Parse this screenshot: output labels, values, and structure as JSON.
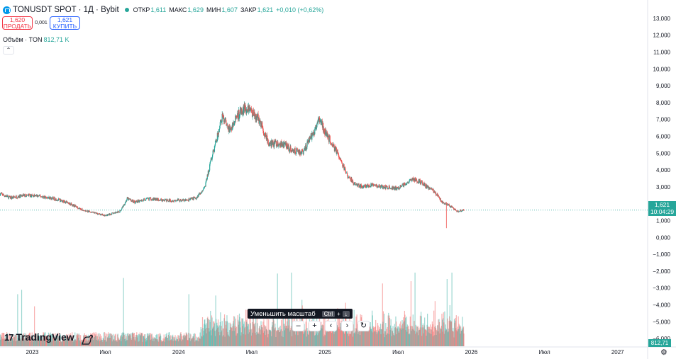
{
  "header": {
    "title": "TONUSDT SPOT · 1Д · Bybit",
    "ohlc": [
      {
        "label": "ОТКР",
        "value": "1,611"
      },
      {
        "label": "МАКС",
        "value": "1,629"
      },
      {
        "label": "МИН",
        "value": "1,607"
      },
      {
        "label": "ЗАКР",
        "value": "1,621"
      },
      {
        "label": "",
        "value": "+0,010 (+0,62%)"
      }
    ]
  },
  "trade": {
    "sell_price": "1,620",
    "sell_label": "ПРОДАТЬ",
    "spread": "0,001",
    "buy_price": "1,621",
    "buy_label": "КУПИТЬ"
  },
  "volume": {
    "label": "Объём · TON",
    "value": "812,71 K"
  },
  "collapse_icon": "chevron-up-icon",
  "tooltip": {
    "text": "Уменьшить масштаб",
    "key": "Ctrl",
    "plus": "+",
    "arrow": "↓"
  },
  "nav": [
    "–",
    "+",
    "‹",
    "›",
    "↻"
  ],
  "brand": {
    "name": "TradingView"
  },
  "price_tag": {
    "price": "1,621",
    "countdown": "10:04:29"
  },
  "volume_tag": "812,71 K",
  "colors": {
    "up": "#26a69a",
    "down": "#ef5350",
    "grid": "#f0f3fa",
    "axis_text": "#131722"
  },
  "chart_data": {
    "type": "candlestick",
    "y_axis_ticks": [
      "13,000",
      "12,000",
      "11,000",
      "10,000",
      "9,000",
      "8,000",
      "7,000",
      "6,000",
      "5,000",
      "4,000",
      "3,000",
      "2,000",
      "1,000",
      "0,000",
      "−1,000",
      "−2,000",
      "−3,000",
      "−4,000",
      "−5,000",
      "−6,000"
    ],
    "ylim": [
      -6.5,
      13.5
    ],
    "x_axis_ticks": [
      {
        "t": 2023.0,
        "label": "2023"
      },
      {
        "t": 2023.5,
        "label": "Июл"
      },
      {
        "t": 2024.0,
        "label": "2024"
      },
      {
        "t": 2024.5,
        "label": "Июл"
      },
      {
        "t": 2025.0,
        "label": "2025"
      },
      {
        "t": 2025.5,
        "label": "Июл"
      },
      {
        "t": 2026.0,
        "label": "2026"
      },
      {
        "t": 2026.5,
        "label": "Июл"
      },
      {
        "t": 2027.0,
        "label": "2027"
      }
    ],
    "xlim": [
      2022.78,
      2027.2
    ],
    "last_price": 1.621,
    "price_path": [
      [
        2022.78,
        2.6
      ],
      [
        2022.85,
        2.35
      ],
      [
        2022.95,
        2.5
      ],
      [
        2023.05,
        2.45
      ],
      [
        2023.15,
        2.3
      ],
      [
        2023.25,
        2.05
      ],
      [
        2023.35,
        1.6
      ],
      [
        2023.45,
        1.4
      ],
      [
        2023.5,
        1.3
      ],
      [
        2023.6,
        1.55
      ],
      [
        2023.65,
        2.3
      ],
      [
        2023.7,
        2.1
      ],
      [
        2023.8,
        2.3
      ],
      [
        2023.9,
        2.2
      ],
      [
        2024.0,
        2.2
      ],
      [
        2024.05,
        2.2
      ],
      [
        2024.12,
        2.35
      ],
      [
        2024.18,
        3.0
      ],
      [
        2024.22,
        4.5
      ],
      [
        2024.26,
        5.8
      ],
      [
        2024.3,
        7.2
      ],
      [
        2024.35,
        6.4
      ],
      [
        2024.4,
        7.2
      ],
      [
        2024.45,
        7.7
      ],
      [
        2024.5,
        7.4
      ],
      [
        2024.55,
        7.0
      ],
      [
        2024.62,
        5.5
      ],
      [
        2024.7,
        5.6
      ],
      [
        2024.78,
        5.2
      ],
      [
        2024.85,
        5.0
      ],
      [
        2024.92,
        6.2
      ],
      [
        2024.96,
        7.1
      ],
      [
        2025.0,
        6.3
      ],
      [
        2025.05,
        5.5
      ],
      [
        2025.1,
        4.8
      ],
      [
        2025.15,
        3.7
      ],
      [
        2025.2,
        3.2
      ],
      [
        2025.25,
        3.0
      ],
      [
        2025.3,
        3.1
      ],
      [
        2025.4,
        3.0
      ],
      [
        2025.5,
        2.9
      ],
      [
        2025.55,
        3.2
      ],
      [
        2025.6,
        3.5
      ],
      [
        2025.65,
        3.3
      ],
      [
        2025.7,
        3.0
      ],
      [
        2025.75,
        2.7
      ],
      [
        2025.8,
        2.1
      ],
      [
        2025.85,
        1.9
      ],
      [
        2025.9,
        1.55
      ],
      [
        2025.95,
        1.62
      ]
    ]
  }
}
